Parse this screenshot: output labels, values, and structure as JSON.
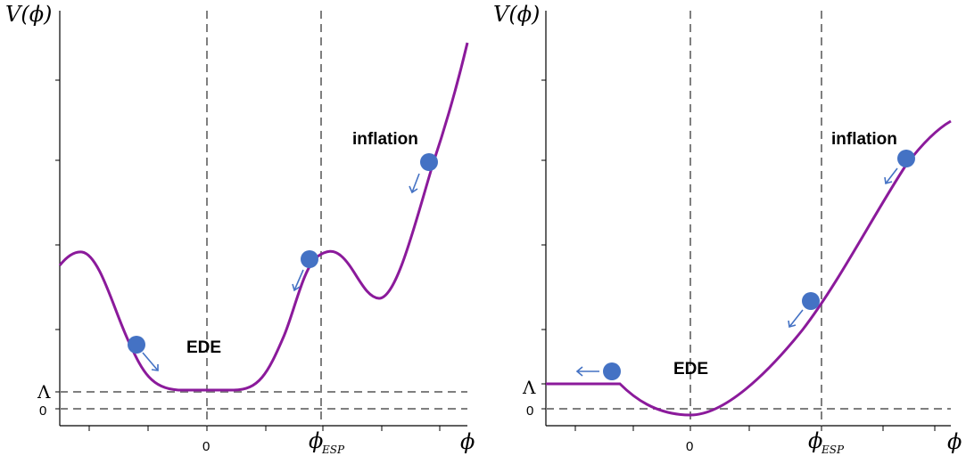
{
  "left_panel": {
    "y_axis_label": "V(ϕ)",
    "x_axis_label": "ϕ",
    "lambda_label": "Λ",
    "zero_y_label": "0",
    "zero_x_label": "0",
    "esp_label_main": "ϕ",
    "esp_label_sub": "ESP",
    "ede_label": "EDE",
    "inflation_label": "inflation"
  },
  "right_panel": {
    "y_axis_label": "V(ϕ)",
    "x_axis_label": "ϕ",
    "lambda_label": "Λ",
    "zero_y_label": "0",
    "zero_x_label": "0",
    "esp_label_main": "ϕ",
    "esp_label_sub": "ESP",
    "ede_label": "EDE",
    "inflation_label": "inflation"
  },
  "colors": {
    "curve": "#8b1a9b",
    "ball": "#4472c4",
    "dashed": "#7f7f7f"
  }
}
